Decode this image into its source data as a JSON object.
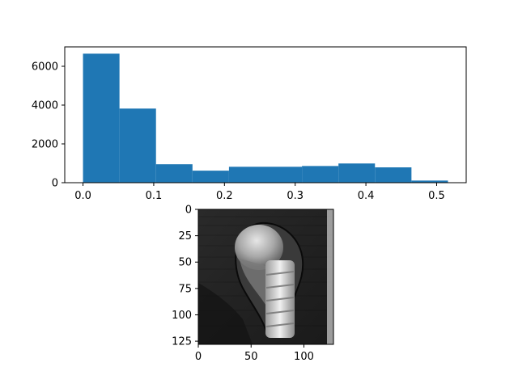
{
  "chart_data": [
    {
      "type": "bar",
      "subtype": "histogram",
      "bin_edges": [
        0.0,
        0.0516,
        0.1032,
        0.1548,
        0.2064,
        0.258,
        0.3096,
        0.3612,
        0.4128,
        0.4644,
        0.516
      ],
      "values": [
        6650,
        3820,
        950,
        620,
        820,
        820,
        860,
        990,
        790,
        110
      ],
      "color": "#1f77b4",
      "xlim": [
        -0.0258,
        0.5418
      ],
      "ylim": [
        0,
        7000
      ],
      "xticks": [
        0.0,
        0.1,
        0.2,
        0.3,
        0.4,
        0.5
      ],
      "xtick_labels": [
        "0.0",
        "0.1",
        "0.2",
        "0.3",
        "0.4",
        "0.5"
      ],
      "yticks": [
        0,
        2000,
        4000,
        6000
      ],
      "ytick_labels": [
        "0",
        "2000",
        "4000",
        "6000"
      ],
      "grid": false,
      "xlabel": "",
      "ylabel": "",
      "title": ""
    },
    {
      "type": "heatmap",
      "subtype": "grayscale-image",
      "colormap": "gray",
      "shape": [
        128,
        128
      ],
      "xlim": [
        0,
        128
      ],
      "ylim": [
        128,
        0
      ],
      "xticks": [
        0,
        50,
        100
      ],
      "xtick_labels": [
        "0",
        "50",
        "100"
      ],
      "yticks": [
        0,
        25,
        50,
        75,
        100,
        125
      ],
      "ytick_labels": [
        "0",
        "25",
        "50",
        "75",
        "100",
        "125"
      ],
      "title": ""
    }
  ]
}
